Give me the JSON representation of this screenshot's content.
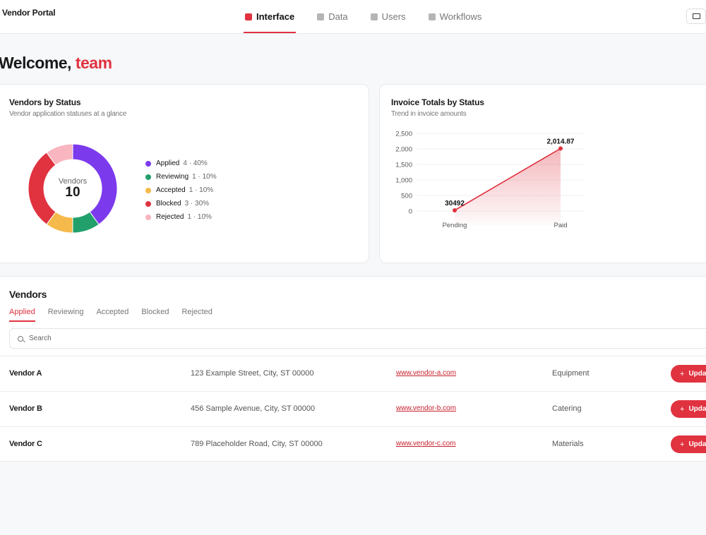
{
  "app": {
    "brand": "Vendor Portal"
  },
  "nav": [
    {
      "label": "Interface",
      "active": true
    },
    {
      "label": "Data",
      "active": false
    },
    {
      "label": "Users",
      "active": false
    },
    {
      "label": "Workflows",
      "active": false
    }
  ],
  "welcome": {
    "prefix": "Welcome,",
    "name": "team"
  },
  "status_card": {
    "title": "Vendors by Status",
    "subtitle": "Vendor application statuses at a glance",
    "center_label": "Vendors",
    "center_value": "10",
    "legend": [
      {
        "name": "Applied",
        "stat": "4 · 40%",
        "color": "#7c3aed"
      },
      {
        "name": "Reviewing",
        "stat": "1 · 10%",
        "color": "#22a06b"
      },
      {
        "name": "Accepted",
        "stat": "1 · 10%",
        "color": "#f6b94c"
      },
      {
        "name": "Blocked",
        "stat": "3 · 30%",
        "color": "#e0323f"
      },
      {
        "name": "Rejected",
        "stat": "1 · 10%",
        "color": "#f9b5c0"
      }
    ]
  },
  "invoice_card": {
    "title": "Invoice Totals by Status",
    "subtitle": "Trend in invoice amounts"
  },
  "chart_data": [
    {
      "type": "pie",
      "categories": [
        "Applied",
        "Reviewing",
        "Accepted",
        "Blocked",
        "Rejected"
      ],
      "values": [
        4,
        1,
        1,
        3,
        1
      ],
      "colors": [
        "#7c3aed",
        "#22a06b",
        "#f6b94c",
        "#e0323f",
        "#f9b5c0"
      ],
      "donut": true
    },
    {
      "type": "area",
      "categories": [
        "Pending",
        "Paid"
      ],
      "values": [
        30492,
        2014.87
      ],
      "point_labels": [
        "30492",
        "2,014.87"
      ],
      "ylim": [
        0,
        2500
      ],
      "yticks": [
        "0",
        "500",
        "1,000",
        "1,500",
        "2,000",
        "2,500"
      ],
      "color": "#e0323f",
      "grid": true
    }
  ],
  "vendors": {
    "title": "Vendors",
    "tabs": [
      {
        "label": "Applied",
        "active": true
      },
      {
        "label": "Reviewing",
        "active": false
      },
      {
        "label": "Accepted",
        "active": false
      },
      {
        "label": "Blocked",
        "active": false
      },
      {
        "label": "Rejected",
        "active": false
      }
    ],
    "search_placeholder": "Search",
    "rows": [
      {
        "name": "Vendor A",
        "address": "123 Example Street, City, ST 00000",
        "website": "www.vendor-a.com",
        "category": "Equipment",
        "action": "Update"
      },
      {
        "name": "Vendor B",
        "address": "456 Sample Avenue, City, ST 00000",
        "website": "www.vendor-b.com",
        "category": "Catering",
        "action": "Update"
      },
      {
        "name": "Vendor C",
        "address": "789 Placeholder Road, City, ST 00000",
        "website": "www.vendor-c.com",
        "category": "Materials",
        "action": "Update"
      }
    ]
  }
}
